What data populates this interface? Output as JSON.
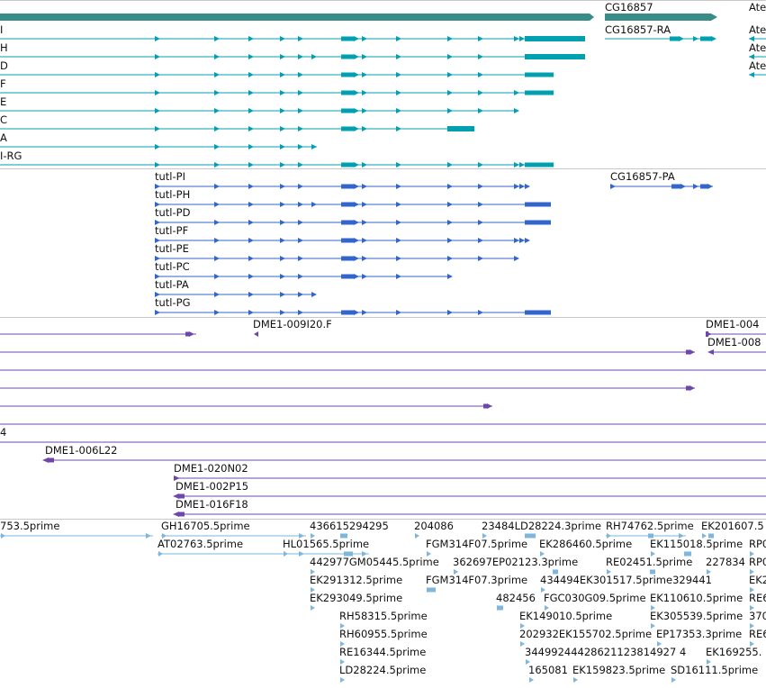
{
  "colors": {
    "transcript": "#00a0b0",
    "gene_bar": "#3a8c88",
    "protein": "#3366cc",
    "clone": "#6e48a8",
    "est": "#7eb6dd",
    "divider": "#c8c8c8"
  },
  "gene_labels": [
    "CG16857",
    "Ate"
  ],
  "transcripts": {
    "left_labels": [
      "I",
      "H",
      "D",
      "F",
      "E",
      "C",
      "A",
      "I-RG"
    ],
    "right_labels": [
      "CG16857-RA",
      "Ate",
      "Ate",
      "Ate"
    ]
  },
  "proteins": {
    "labels": [
      "tutl-PI",
      "tutl-PH",
      "tutl-PD",
      "tutl-PF",
      "tutl-PE",
      "tutl-PC",
      "tutl-PA",
      "tutl-PG"
    ],
    "right_label": "CG16857-PA"
  },
  "clones": {
    "labels": [
      "DME1-009I20.F",
      "DME1-004",
      "DME1-008",
      "4",
      "DME1-006L22",
      "DME1-020N02",
      "DME1-002P15",
      "DME1-016F18"
    ]
  },
  "ests": {
    "labels": [
      "753.5prime",
      "GH16705.5prime",
      "436615294295",
      "204086",
      "23484LD28224.3prime",
      "RH74762.5prime",
      "EK201607.5",
      "AT02763.5prime",
      "HL01565.5prime",
      "FGM314F07.5prime",
      "EK286460.5prime",
      "EK115018.5prime",
      "RP0",
      "442977GM05445.5prime",
      "362697EP02123.3prime",
      "RE02451.5prime",
      "227834",
      "RP0",
      "EK291312.5prime",
      "FGM314F07.3prime",
      "434494EK301517.5prime329441",
      "EK2",
      "EK293049.5prime",
      "482456",
      "FGC030G09.5prime",
      "EK110610.5prime",
      "RE6",
      "RH58315.5prime",
      "EK149010.5prime",
      "EK305539.5prime",
      "370",
      "RH60955.5prime",
      "202932EK155702.5prime",
      "EP17353.3prime",
      "RE6",
      "RE16344.5prime",
      "34499244428621123814927 4",
      "EK169255.",
      "LD28224.5prime",
      "165081",
      "EK159823.5prime",
      "SD16111.5prime"
    ]
  }
}
